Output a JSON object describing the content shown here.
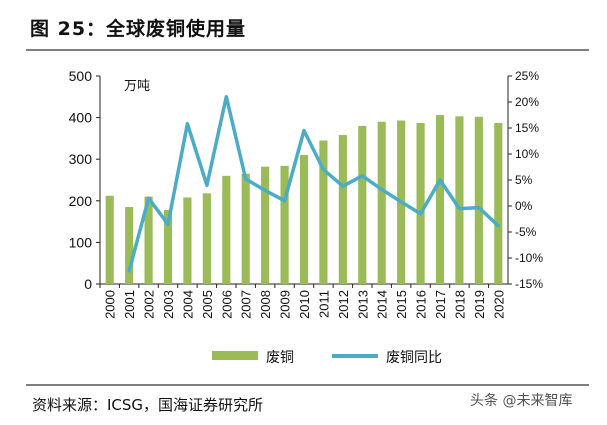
{
  "title": "图 25：全球废铜使用量",
  "source": "资料来源：ICSG，国海证券研究所",
  "watermark": "头条 @未来智库",
  "chart_data": {
    "type": "bar",
    "categories": [
      "2000",
      "2001",
      "2002",
      "2003",
      "2004",
      "2005",
      "2006",
      "2007",
      "2008",
      "2009",
      "2010",
      "2011",
      "2012",
      "2013",
      "2014",
      "2015",
      "2016",
      "2017",
      "2018",
      "2019",
      "2020"
    ],
    "unit_label": "万吨",
    "y_ticks": [
      "0",
      "100",
      "200",
      "300",
      "400",
      "500"
    ],
    "y2_ticks": [
      "-15%",
      "-10%",
      "-5%",
      "0%",
      "5%",
      "10%",
      "15%",
      "20%",
      "25%"
    ],
    "ylim": [
      0,
      500
    ],
    "y2lim": [
      -15,
      25
    ],
    "legend_position": "bottom",
    "series": [
      {
        "name": "废铜",
        "type": "bar",
        "axis": "left",
        "color": "#9bbb59",
        "values": [
          212,
          185,
          210,
          178,
          208,
          218,
          260,
          265,
          282,
          284,
          310,
          345,
          358,
          380,
          390,
          393,
          387,
          406,
          403,
          402,
          387
        ]
      },
      {
        "name": "废铜同比",
        "type": "line",
        "axis": "right",
        "color": "#4bacc6",
        "values": [
          null,
          -12.5,
          1.5,
          -3.5,
          15.8,
          4.0,
          21.0,
          5.2,
          3.0,
          1.0,
          14.5,
          7.0,
          3.8,
          5.8,
          3.2,
          0.8,
          -1.5,
          5.0,
          -0.5,
          -0.3,
          -3.8
        ]
      }
    ]
  }
}
